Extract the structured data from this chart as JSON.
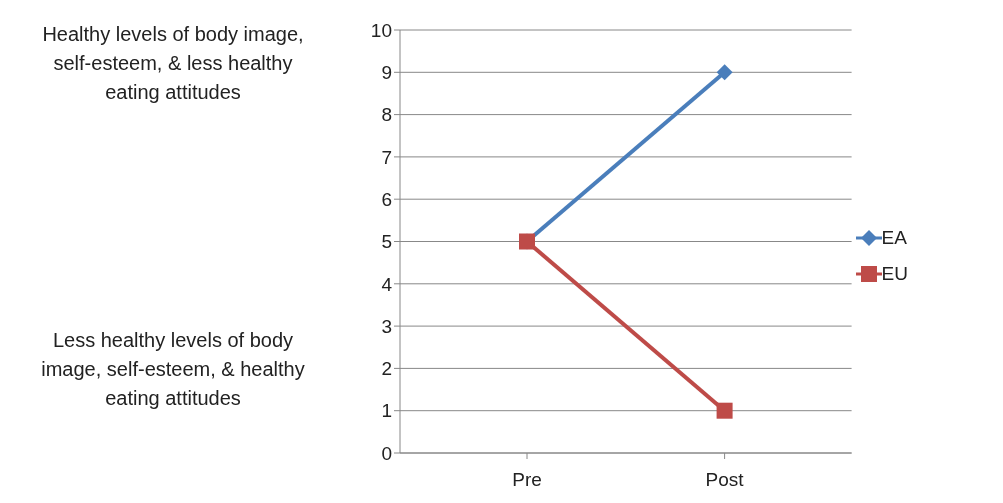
{
  "chart_data": {
    "type": "line",
    "categories": [
      "Pre",
      "Post"
    ],
    "series": [
      {
        "name": "EA",
        "color": "#4a7ebb",
        "values": [
          5,
          9
        ],
        "marker": "diamond"
      },
      {
        "name": "EU",
        "color": "#be4b48",
        "values": [
          5,
          1
        ],
        "marker": "square"
      }
    ],
    "ylim": [
      0,
      10
    ],
    "yticks": [
      0,
      1,
      2,
      3,
      4,
      5,
      6,
      7,
      8,
      9,
      10
    ],
    "grid": "y",
    "legend": "right",
    "line_style": "solid",
    "annotations": [
      "Healthy levels of body image, self-esteem, & less healthy eating attitudes",
      "Less healthy levels of body image, self-esteem, & healthy eating attitudes"
    ]
  }
}
